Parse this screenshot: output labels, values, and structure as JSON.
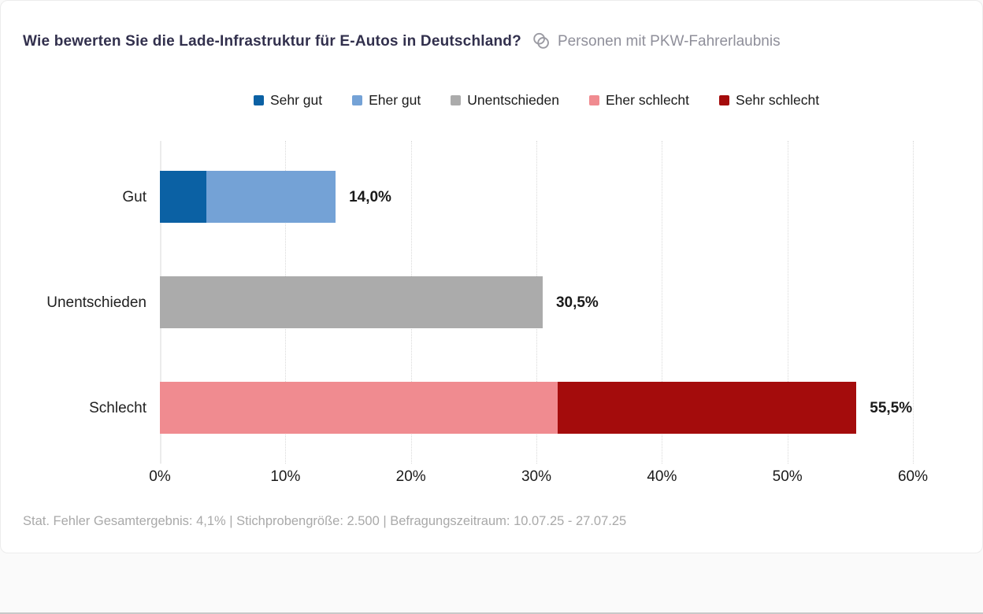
{
  "card": {
    "title": "Wie bewerten Sie die Lade-Infrastruktur für E-Autos in Deutschland?",
    "audience": "Personen mit PKW-Fahrerlaubnis",
    "footnote": "Stat. Fehler Gesamtergebnis: 4,1% | Stichprobengröße: 2.500 | Befragungszeitraum: 10.07.25 - 27.07.25"
  },
  "colors": {
    "sehr_gut": "#0b61a4",
    "eher_gut": "#74a2d6",
    "unentschieden": "#ababab",
    "eher_schlecht": "#f08b90",
    "sehr_schlecht": "#a40c0c",
    "title_text": "#32304d",
    "audience_text": "#8f8f9a",
    "footnote_text": "#a9a9a9"
  },
  "chart_data": {
    "type": "bar",
    "orientation": "horizontal",
    "stacked": true,
    "grid": "vertical-dotted",
    "legend_position": "top",
    "categories": [
      "Gut",
      "Unentschieden",
      "Schlecht"
    ],
    "totals": [
      14.0,
      30.5,
      55.5
    ],
    "totals_labels": [
      "14,0%",
      "30,5%",
      "55,5%"
    ],
    "series": [
      {
        "name": "Sehr gut",
        "color": "#0b61a4",
        "values": [
          3.7,
          0,
          0
        ]
      },
      {
        "name": "Eher gut",
        "color": "#74a2d6",
        "values": [
          10.3,
          0,
          0
        ]
      },
      {
        "name": "Unentschieden",
        "color": "#ababab",
        "values": [
          0,
          30.5,
          0
        ]
      },
      {
        "name": "Eher schlecht",
        "color": "#f08b90",
        "values": [
          0,
          0,
          31.7
        ]
      },
      {
        "name": "Sehr schlecht",
        "color": "#a40c0c",
        "values": [
          0,
          0,
          23.8
        ]
      }
    ],
    "xlabel": "",
    "ylabel": "",
    "xlim": [
      0,
      60
    ],
    "xticks": [
      "0%",
      "10%",
      "20%",
      "30%",
      "40%",
      "50%",
      "60%"
    ]
  }
}
